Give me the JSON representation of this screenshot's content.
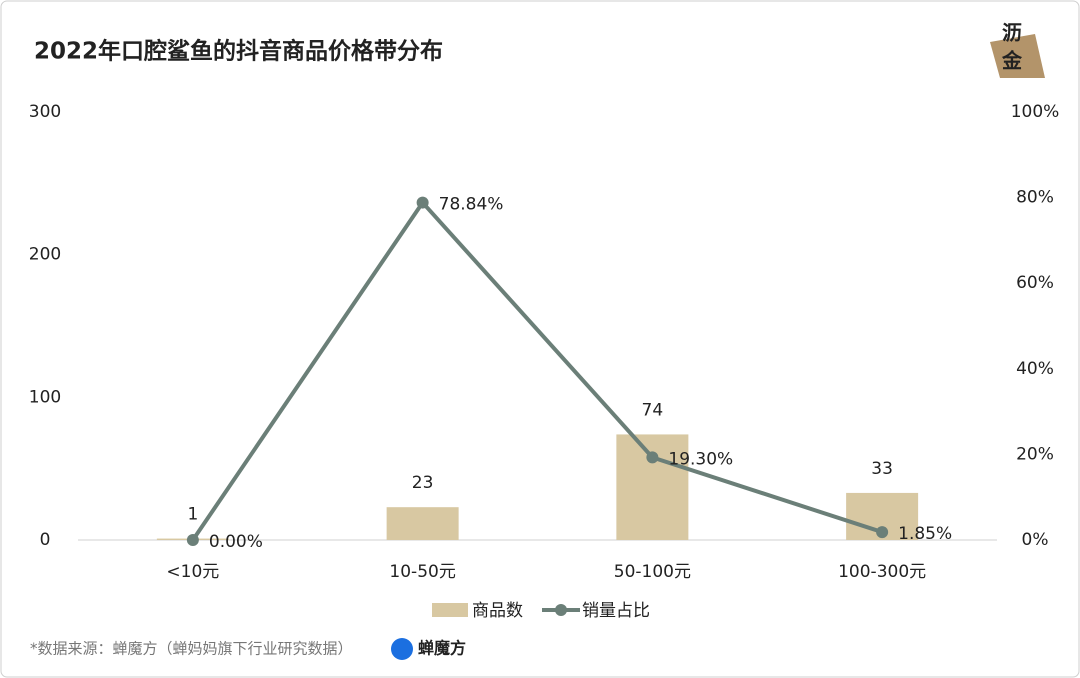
{
  "chart_data": {
    "type": "bar_line",
    "title": "2022年口腔鲨鱼的抖音商品价格带分布",
    "categories": [
      "<10元",
      "10-50元",
      "50-100元",
      "100-300元"
    ],
    "series": [
      {
        "name": "商品数",
        "type": "bar",
        "color": "#d8c8a2",
        "values": [
          1,
          23,
          74,
          33
        ]
      },
      {
        "name": "销量占比",
        "type": "line",
        "axis": "y2",
        "color": "#6b7f78",
        "values": [
          0,
          78.84,
          19.3,
          1.85
        ],
        "value_labels": [
          "0.00%",
          "78.84%",
          "19.30%",
          "1.85%"
        ]
      }
    ],
    "ylim": [
      0,
      300
    ],
    "yticks": [
      0,
      100,
      200,
      300
    ],
    "y2lim": [
      0,
      100
    ],
    "y2ticks": [
      {
        "value": 0,
        "label": "0%"
      },
      {
        "value": 20,
        "label": "20%"
      },
      {
        "value": 40,
        "label": "40%"
      },
      {
        "value": 60,
        "label": "60%"
      },
      {
        "value": 80,
        "label": "80%"
      },
      {
        "value": 100,
        "label": "100%"
      }
    ],
    "legend": "bottom"
  },
  "footer": {
    "source": "*数据来源：蝉魔方（蝉妈妈旗下行业研究数据）",
    "brand": "蝉魔方"
  },
  "badge": [
    "沥",
    "金"
  ]
}
